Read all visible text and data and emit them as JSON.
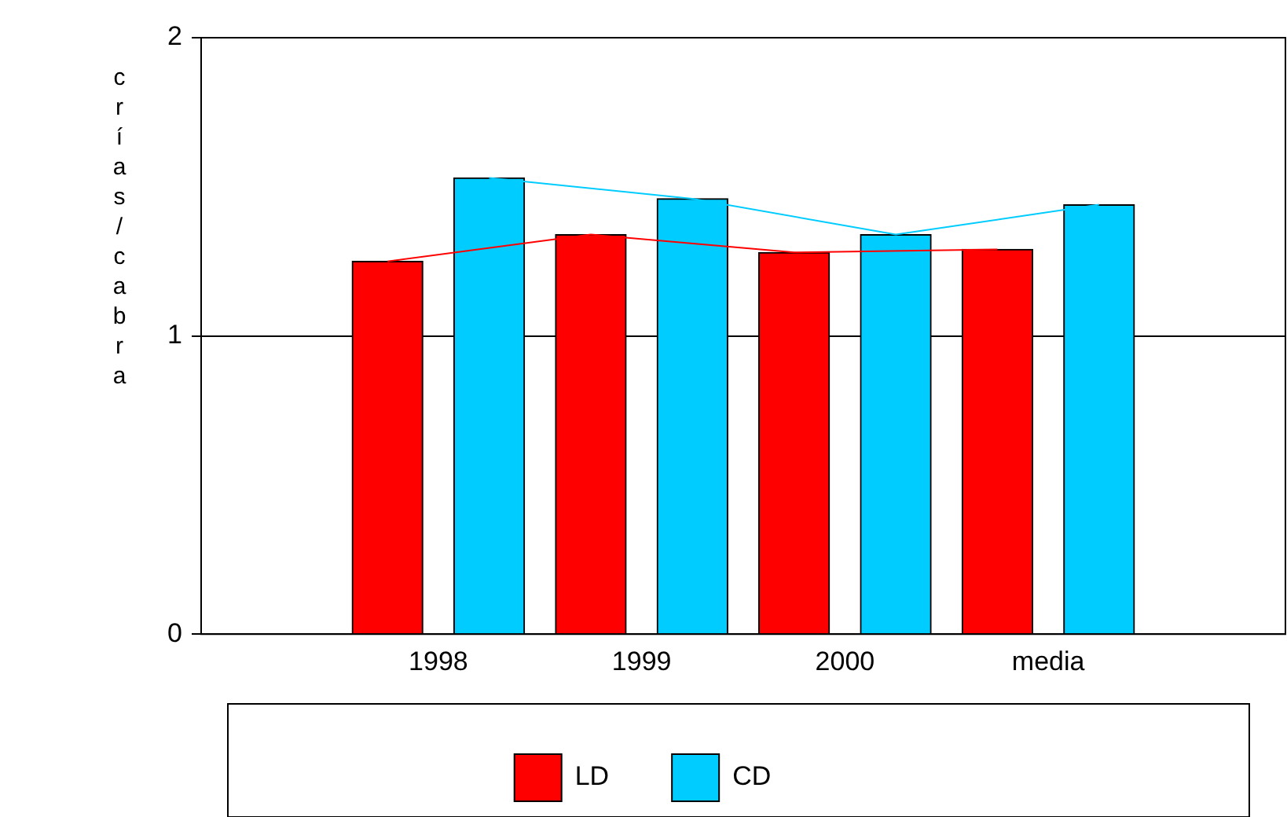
{
  "chart_data": {
    "type": "bar",
    "ylabel": "crías/cabra",
    "categories": [
      "1998",
      "1999",
      "2000",
      "media"
    ],
    "series": [
      {
        "name": "LD",
        "color": "#ff0000",
        "values": [
          1.25,
          1.34,
          1.28,
          1.29
        ]
      },
      {
        "name": "CD",
        "color": "#00ccff",
        "values": [
          1.53,
          1.46,
          1.34,
          1.44
        ]
      },
      {
        "type": "line",
        "color": "#ff0000",
        "values": [
          1.25,
          1.34,
          1.28,
          1.29
        ]
      },
      {
        "type": "line",
        "color": "#00ccff",
        "values": [
          1.53,
          1.46,
          1.34,
          1.44
        ]
      }
    ],
    "ylim": [
      0,
      2
    ],
    "yticks": [
      0,
      1,
      2
    ],
    "grid": "y",
    "legend": "bottom"
  }
}
